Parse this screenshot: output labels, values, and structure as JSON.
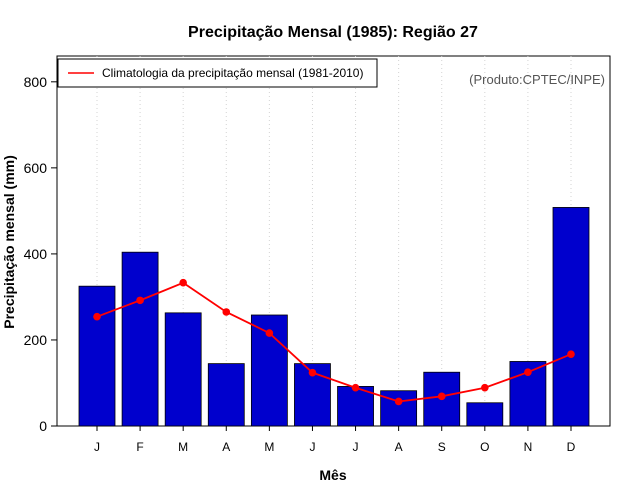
{
  "chart_data": {
    "type": "bar",
    "title": "Precipitação Mensal (1985): Região 27",
    "xlabel": "Mês",
    "ylabel": "Precipitação mensal (mm)",
    "ylim": [
      0,
      860
    ],
    "yticks": [
      0,
      200,
      400,
      600,
      800
    ],
    "categories": [
      "J",
      "F",
      "M",
      "A",
      "M",
      "J",
      "J",
      "A",
      "S",
      "O",
      "N",
      "D"
    ],
    "series": [
      {
        "name": "Precipitação mensal 1985",
        "type": "bar",
        "color": "#0000CD",
        "values": [
          325,
          404,
          263,
          145,
          258,
          145,
          92,
          82,
          125,
          54,
          150,
          508
        ]
      },
      {
        "name": "Climatologia da precipitação mensal (1981-2010)",
        "type": "line",
        "color": "#FF0000",
        "values": [
          254,
          292,
          333,
          265,
          216,
          124,
          89,
          57,
          69,
          89,
          125,
          167
        ]
      }
    ],
    "legend": {
      "label": "Climatologia da precipitação mensal (1981-2010)",
      "position": "top-left"
    },
    "grid": "vertical dotted",
    "annotation": "(Produto:CPTEC/INPE)"
  }
}
